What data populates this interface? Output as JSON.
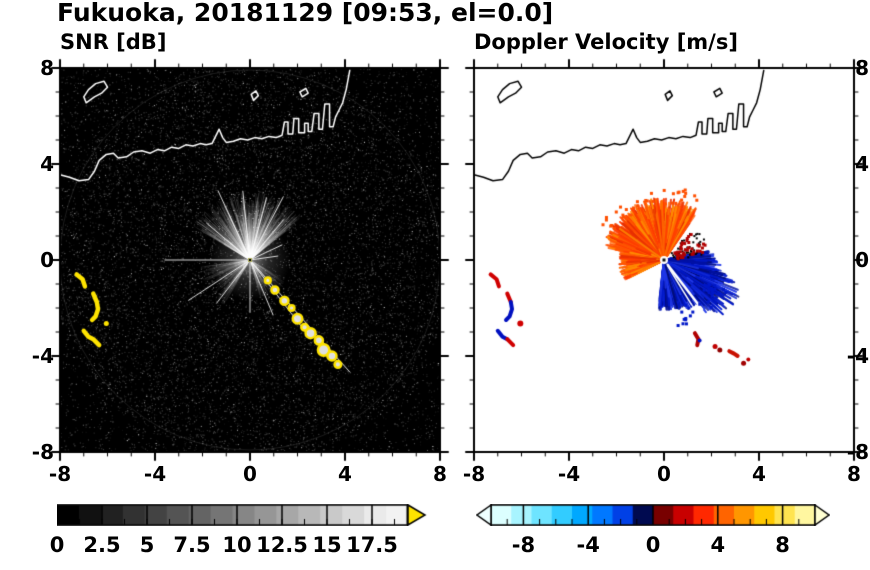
{
  "title": "Fukuoka, 20181129 [09:53, el=0.0]",
  "panels": {
    "left": {
      "label": "SNR [dB]",
      "x_ticks": [
        "-8",
        "-4",
        "0",
        "4",
        "8"
      ],
      "x_tick_values": [
        -8,
        -4,
        0,
        4,
        8
      ],
      "y_ticks": [
        "8",
        "4",
        "0",
        "-4",
        "-8"
      ],
      "y_tick_values": [
        8,
        4,
        0,
        -4,
        -8
      ]
    },
    "right": {
      "label": "Doppler Velocity [m/s]",
      "x_ticks": [
        "-8",
        "-4",
        "0",
        "4",
        "8"
      ],
      "x_tick_values": [
        -8,
        -4,
        0,
        4,
        8
      ],
      "y_ticks_right": [
        "8",
        "4",
        "0",
        "-4",
        "-8"
      ],
      "y_tick_values": [
        8,
        4,
        0,
        -4,
        -8
      ]
    }
  },
  "colorbars": {
    "snr": {
      "scheme": "grayscale",
      "range": [
        0,
        19.5
      ],
      "tick_labels": [
        "0",
        "2.5",
        "5",
        "7.5",
        "10",
        "12.5",
        "15",
        "17.5"
      ],
      "tick_values": [
        0,
        2.5,
        5,
        7.5,
        10,
        12.5,
        15,
        17.5
      ],
      "over_arrow_color": "#ffe400"
    },
    "velocity": {
      "scheme": "cyan-blue-black-red-orange-yellow",
      "range": [
        -10,
        10
      ],
      "tick_labels": [
        "-8",
        "-4",
        "0",
        "4",
        "8"
      ],
      "tick_values": [
        -8,
        -4,
        0,
        4,
        8
      ],
      "step_colors": [
        "#dcffff",
        "#a8f4ff",
        "#6ee4ff",
        "#32ccff",
        "#00a8ff",
        "#0078ff",
        "#0040e6",
        "#000a50",
        "#780000",
        "#c80000",
        "#ff2800",
        "#ff6400",
        "#ff9600",
        "#ffc800",
        "#ffe450",
        "#fff7a0"
      ],
      "under_arrow_color": "#eeffff",
      "over_arrow_color": "#ffffd2"
    }
  },
  "chart_data": {
    "type": "heatmap",
    "subtype": "radar-ppi-dual-panel",
    "title": "Fukuoka, 20181129 [09:53, el=0.0]",
    "xlabel": "",
    "ylabel": "",
    "x_range_km": [
      -8,
      8
    ],
    "y_range_km": [
      -8,
      8
    ],
    "radar_center": [
      0,
      0
    ],
    "panel_labels": [
      "SNR [dB]",
      "Doppler Velocity [m/s]"
    ],
    "snr_colorbar_ticks": [
      0,
      2.5,
      5,
      7.5,
      10,
      12.5,
      15,
      17.5
    ],
    "velocity_colorbar_ticks": [
      -8,
      -4,
      0,
      4,
      8
    ],
    "coastline": {
      "polylines": [
        [
          [
            -8,
            3.55
          ],
          [
            -7.6,
            3.45
          ],
          [
            -7.2,
            3.3
          ],
          [
            -6.8,
            3.35
          ],
          [
            -6.55,
            3.7
          ],
          [
            -6.35,
            4.15
          ],
          [
            -6.05,
            4.4
          ],
          [
            -5.75,
            4.45
          ],
          [
            -5.55,
            4.25
          ],
          [
            -5.2,
            4.3
          ],
          [
            -4.9,
            4.5
          ],
          [
            -4.55,
            4.55
          ],
          [
            -4.2,
            4.45
          ],
          [
            -3.9,
            4.6
          ],
          [
            -3.6,
            4.55
          ],
          [
            -3.3,
            4.7
          ],
          [
            -3,
            4.65
          ],
          [
            -2.7,
            4.8
          ],
          [
            -2.4,
            4.75
          ],
          [
            -2.1,
            4.85
          ],
          [
            -1.85,
            4.8
          ],
          [
            -1.6,
            4.85
          ],
          [
            -1.45,
            5.15
          ],
          [
            -1.3,
            5.45
          ],
          [
            -1.15,
            5.1
          ],
          [
            -1,
            4.9
          ],
          [
            -0.7,
            4.95
          ],
          [
            -0.4,
            5.05
          ],
          [
            -0.1,
            5
          ],
          [
            0.2,
            5.1
          ],
          [
            0.5,
            5.05
          ],
          [
            0.8,
            5.15
          ],
          [
            1.1,
            5.1
          ],
          [
            1.35,
            5.2
          ],
          [
            1.45,
            5.75
          ],
          [
            1.6,
            5.75
          ],
          [
            1.6,
            5.25
          ],
          [
            1.8,
            5.25
          ],
          [
            1.85,
            5.9
          ],
          [
            2.05,
            5.9
          ],
          [
            2.05,
            5.3
          ],
          [
            2.3,
            5.3
          ],
          [
            2.3,
            5.7
          ],
          [
            2.45,
            5.7
          ],
          [
            2.45,
            5.35
          ],
          [
            2.6,
            5.35
          ],
          [
            2.7,
            6.1
          ],
          [
            2.9,
            6.1
          ],
          [
            2.9,
            5.45
          ],
          [
            3.05,
            5.45
          ],
          [
            3.15,
            6.5
          ],
          [
            3.35,
            6.5
          ],
          [
            3.35,
            5.55
          ],
          [
            3.5,
            5.55
          ],
          [
            3.6,
            5.95
          ],
          [
            3.75,
            6.25
          ],
          [
            3.9,
            6.55
          ],
          [
            4.05,
            7.1
          ],
          [
            4.2,
            7.9
          ]
        ],
        [
          [
            -6.9,
            6.55
          ],
          [
            -6.55,
            6.8
          ],
          [
            -6.25,
            6.95
          ],
          [
            -6,
            7.2
          ],
          [
            -6.15,
            7.45
          ],
          [
            -6.5,
            7.35
          ],
          [
            -6.8,
            7.1
          ],
          [
            -7,
            6.8
          ],
          [
            -6.9,
            6.55
          ]
        ],
        [
          [
            0.15,
            6.65
          ],
          [
            0.35,
            6.85
          ],
          [
            0.25,
            7.05
          ],
          [
            0.05,
            6.9
          ],
          [
            0.15,
            6.65
          ]
        ],
        [
          [
            2.2,
            6.8
          ],
          [
            2.45,
            6.95
          ],
          [
            2.35,
            7.15
          ],
          [
            2.1,
            7
          ],
          [
            2.2,
            6.8
          ]
        ]
      ]
    },
    "snr": {
      "background": "#000000",
      "noise": {
        "count": 13000,
        "seed": 7
      },
      "glow": {
        "radius_km": 1.7,
        "alpha": 0.5
      },
      "fans": [
        {
          "a0": 38,
          "a1": 150,
          "rmax": 2.7,
          "n": 750,
          "alpha": 0.1
        },
        {
          "a0": 185,
          "a1": 240,
          "rmax": 2.0,
          "n": 170,
          "alpha": 0.07
        },
        {
          "a0": -75,
          "a1": -30,
          "rmax": 1.6,
          "n": 120,
          "alpha": 0.06
        }
      ],
      "rays": [
        {
          "a": 115,
          "len": 3.2
        },
        {
          "a": 96,
          "len": 2.9
        },
        {
          "a": 75,
          "len": 2.7
        },
        {
          "a": 62,
          "len": 3.0
        },
        {
          "a": 50,
          "len": 2.2
        },
        {
          "a": 140,
          "len": 2.4
        },
        {
          "a": 180,
          "len": 3.6
        },
        {
          "a": 213,
          "len": 3.1
        },
        {
          "a": 232,
          "len": 2.3
        },
        {
          "a": -48,
          "len": 6.3
        },
        {
          "a": -52,
          "len": 4.0
        },
        {
          "a": -67,
          "len": 2.5
        },
        {
          "a": -90,
          "len": 2.2
        },
        {
          "a": 25,
          "len": 1.5
        },
        {
          "a": 8,
          "len": 1.2
        }
      ],
      "echo_color": "#ffe400",
      "left_arcs": [
        [
          [
            -7.3,
            -0.6
          ],
          [
            -7.05,
            -0.8
          ],
          [
            -6.95,
            -1.1
          ]
        ],
        [
          [
            -6.6,
            -1.4
          ],
          [
            -6.45,
            -1.75
          ],
          [
            -6.4,
            -2.05
          ],
          [
            -6.5,
            -2.35
          ],
          [
            -6.65,
            -2.5
          ]
        ],
        [
          [
            -7,
            -2.95
          ],
          [
            -6.8,
            -3.2
          ],
          [
            -6.6,
            -3.3
          ],
          [
            -6.35,
            -3.55
          ]
        ]
      ],
      "left_dots": [
        [
          -6.05,
          -2.65
        ]
      ],
      "wake_blobs": [
        {
          "x": 0.75,
          "y": -0.85,
          "r": 0.12
        },
        {
          "x": 1.05,
          "y": -1.25,
          "r": 0.15
        },
        {
          "x": 1.45,
          "y": -1.7,
          "r": 0.17
        },
        {
          "x": 1.75,
          "y": -2.0,
          "r": 0.12
        },
        {
          "x": 2.0,
          "y": -2.45,
          "r": 0.2
        },
        {
          "x": 2.3,
          "y": -2.8,
          "r": 0.14
        },
        {
          "x": 2.55,
          "y": -3.05,
          "r": 0.21
        },
        {
          "x": 2.9,
          "y": -3.35,
          "r": 0.17
        },
        {
          "x": 3.1,
          "y": -3.75,
          "r": 0.24
        },
        {
          "x": 3.45,
          "y": -4.0,
          "r": 0.19
        },
        {
          "x": 3.7,
          "y": -4.35,
          "r": 0.14
        }
      ]
    },
    "velocity": {
      "background": "#ffffff",
      "away_colors": [
        "#ff6a00",
        "#ff3c00",
        "#ff8c00",
        "#e83000",
        "#ff5400"
      ],
      "toward_colors": [
        "#0018c8",
        "#0010a0",
        "#2038e8",
        "#000c78",
        "#1028d8"
      ],
      "fans": [
        {
          "a0": 55,
          "a1": 168,
          "rmax": 2.6,
          "n": 850,
          "palette": "away",
          "lw": 2
        },
        {
          "a0": 168,
          "a1": 207,
          "rmax": 1.9,
          "n": 260,
          "palette": "away",
          "lw": 2
        },
        {
          "a0": -97,
          "a1": 12,
          "rmax": 2.1,
          "n": 950,
          "palette": "toward",
          "lw": 2,
          "bulge": {
            "a": -32,
            "spread": 22,
            "extra": 0.9
          }
        }
      ],
      "speck_regions": [
        {
          "a0": 8,
          "a1": 50,
          "r0": 0.4,
          "r1": 1.9,
          "n": 45,
          "color": "#000000",
          "size": 2
        },
        {
          "a0": 12,
          "a1": 48,
          "r0": 0.5,
          "r1": 1.8,
          "n": 40,
          "color": "#b00000",
          "size": 3
        },
        {
          "a0": -80,
          "a1": -25,
          "r0": 2.0,
          "r1": 2.9,
          "n": 30,
          "color": "#0018c8",
          "size": 3
        },
        {
          "a0": 60,
          "a1": 150,
          "r0": 2.4,
          "r1": 3.1,
          "n": 35,
          "color": "#ff5000",
          "size": 3
        }
      ],
      "gap_rays": [
        {
          "a": -52,
          "r0": 0.25,
          "r1": 2.6,
          "lw": 2.5
        },
        {
          "a": -58,
          "r0": 0.3,
          "r1": 2.2,
          "lw": 1.5
        }
      ],
      "arcs": [
        {
          "pts": [
            [
              -7.3,
              -0.6
            ],
            [
              -7.05,
              -0.8
            ],
            [
              -6.95,
              -1.1
            ]
          ],
          "color": "#d00000"
        },
        {
          "pts": [
            [
              -6.6,
              -1.4
            ],
            [
              -6.45,
              -1.75
            ]
          ],
          "color": "#d00000"
        },
        {
          "pts": [
            [
              -6.45,
              -1.75
            ],
            [
              -6.4,
              -2.05
            ],
            [
              -6.5,
              -2.35
            ],
            [
              -6.65,
              -2.5
            ]
          ],
          "color": "#0010c0"
        },
        {
          "pts": [
            [
              -7,
              -2.95
            ],
            [
              -6.8,
              -3.2
            ],
            [
              -6.6,
              -3.3
            ]
          ],
          "color": "#0010c0"
        },
        {
          "pts": [
            [
              -6.6,
              -3.3
            ],
            [
              -6.35,
              -3.55
            ]
          ],
          "color": "#d00000"
        },
        {
          "pts": [
            [
              1.3,
              -3.05
            ],
            [
              1.45,
              -3.3
            ],
            [
              1.4,
              -3.55
            ]
          ],
          "color": "#b00000"
        },
        {
          "pts": [
            [
              2.75,
              -3.8
            ],
            [
              2.95,
              -3.9
            ],
            [
              3.1,
              -4.0
            ]
          ],
          "color": "#c81000"
        }
      ],
      "dots": [
        {
          "x": -6.05,
          "y": -2.65,
          "color": "#d00000",
          "r": 3
        },
        {
          "x": 1.5,
          "y": -3.35,
          "color": "#0010c0",
          "r": 2
        },
        {
          "x": 2.15,
          "y": -3.6,
          "color": "#c00000",
          "r": 2.5
        },
        {
          "x": 2.35,
          "y": -3.75,
          "color": "#900000",
          "r": 2.5
        },
        {
          "x": 3.35,
          "y": -4.3,
          "color": "#a00000",
          "r": 2.5
        },
        {
          "x": 3.55,
          "y": -4.15,
          "color": "#c00000",
          "r": 2
        }
      ]
    }
  }
}
